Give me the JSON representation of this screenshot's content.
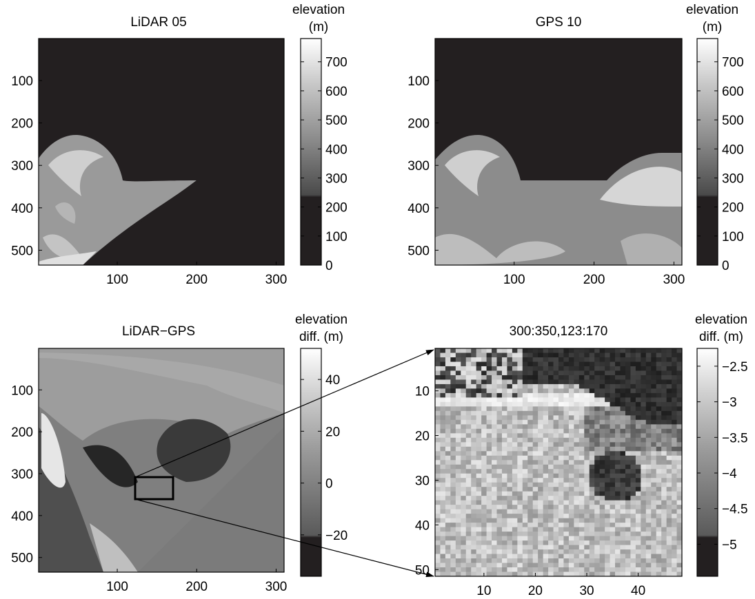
{
  "chart_data": [
    {
      "type": "heatmap",
      "title": "LiDAR 05",
      "colorbar_label": [
        "elevation",
        "(m)"
      ],
      "colormap": "gray",
      "x_ticks": [
        "100",
        "200",
        "300"
      ],
      "y_ticks": [
        "100",
        "200",
        "300",
        "400",
        "500"
      ],
      "colorbar_ticks": [
        "0",
        "100",
        "200",
        "300",
        "400",
        "500",
        "600",
        "700"
      ],
      "colorbar_range": [
        0,
        780
      ],
      "xlim": [
        1,
        310
      ],
      "ylim": [
        1,
        535
      ]
    },
    {
      "type": "heatmap",
      "title": "GPS 10",
      "colorbar_label": [
        "elevation",
        "(m)"
      ],
      "colormap": "gray",
      "x_ticks": [
        "100",
        "200",
        "300"
      ],
      "y_ticks": [
        "100",
        "200",
        "300",
        "400",
        "500"
      ],
      "colorbar_ticks": [
        "0",
        "100",
        "200",
        "300",
        "400",
        "500",
        "600",
        "700"
      ],
      "colorbar_range": [
        0,
        780
      ],
      "xlim": [
        1,
        310
      ],
      "ylim": [
        1,
        535
      ]
    },
    {
      "type": "heatmap",
      "title": "LiDAR−GPS",
      "colorbar_label": [
        "elevation",
        "diff. (m)"
      ],
      "colormap": "gray",
      "x_ticks": [
        "100",
        "200",
        "300"
      ],
      "y_ticks": [
        "100",
        "200",
        "300",
        "400",
        "500"
      ],
      "colorbar_ticks": [
        "40",
        "20",
        "0",
        "−20"
      ],
      "colorbar_range": [
        -36,
        52
      ],
      "xlim": [
        1,
        310
      ],
      "ylim": [
        1,
        535
      ],
      "zoom_region": {
        "x": [
          123,
          170
        ],
        "y": [
          300,
          350
        ]
      }
    },
    {
      "type": "heatmap",
      "title": "300:350,123:170",
      "colorbar_label": [
        "elevation",
        "diff. (m)"
      ],
      "colormap": "gray",
      "x_ticks": [
        "10",
        "20",
        "30",
        "40"
      ],
      "y_ticks": [
        "10",
        "20",
        "30",
        "40",
        "50"
      ],
      "colorbar_ticks": [
        "−2.5",
        "−3",
        "−3.5",
        "−4",
        "−4.5",
        "−5"
      ],
      "colorbar_range": [
        -5.45,
        -2.25
      ],
      "xlim": [
        0.5,
        48.5
      ],
      "ylim": [
        0.5,
        51.5
      ]
    }
  ]
}
